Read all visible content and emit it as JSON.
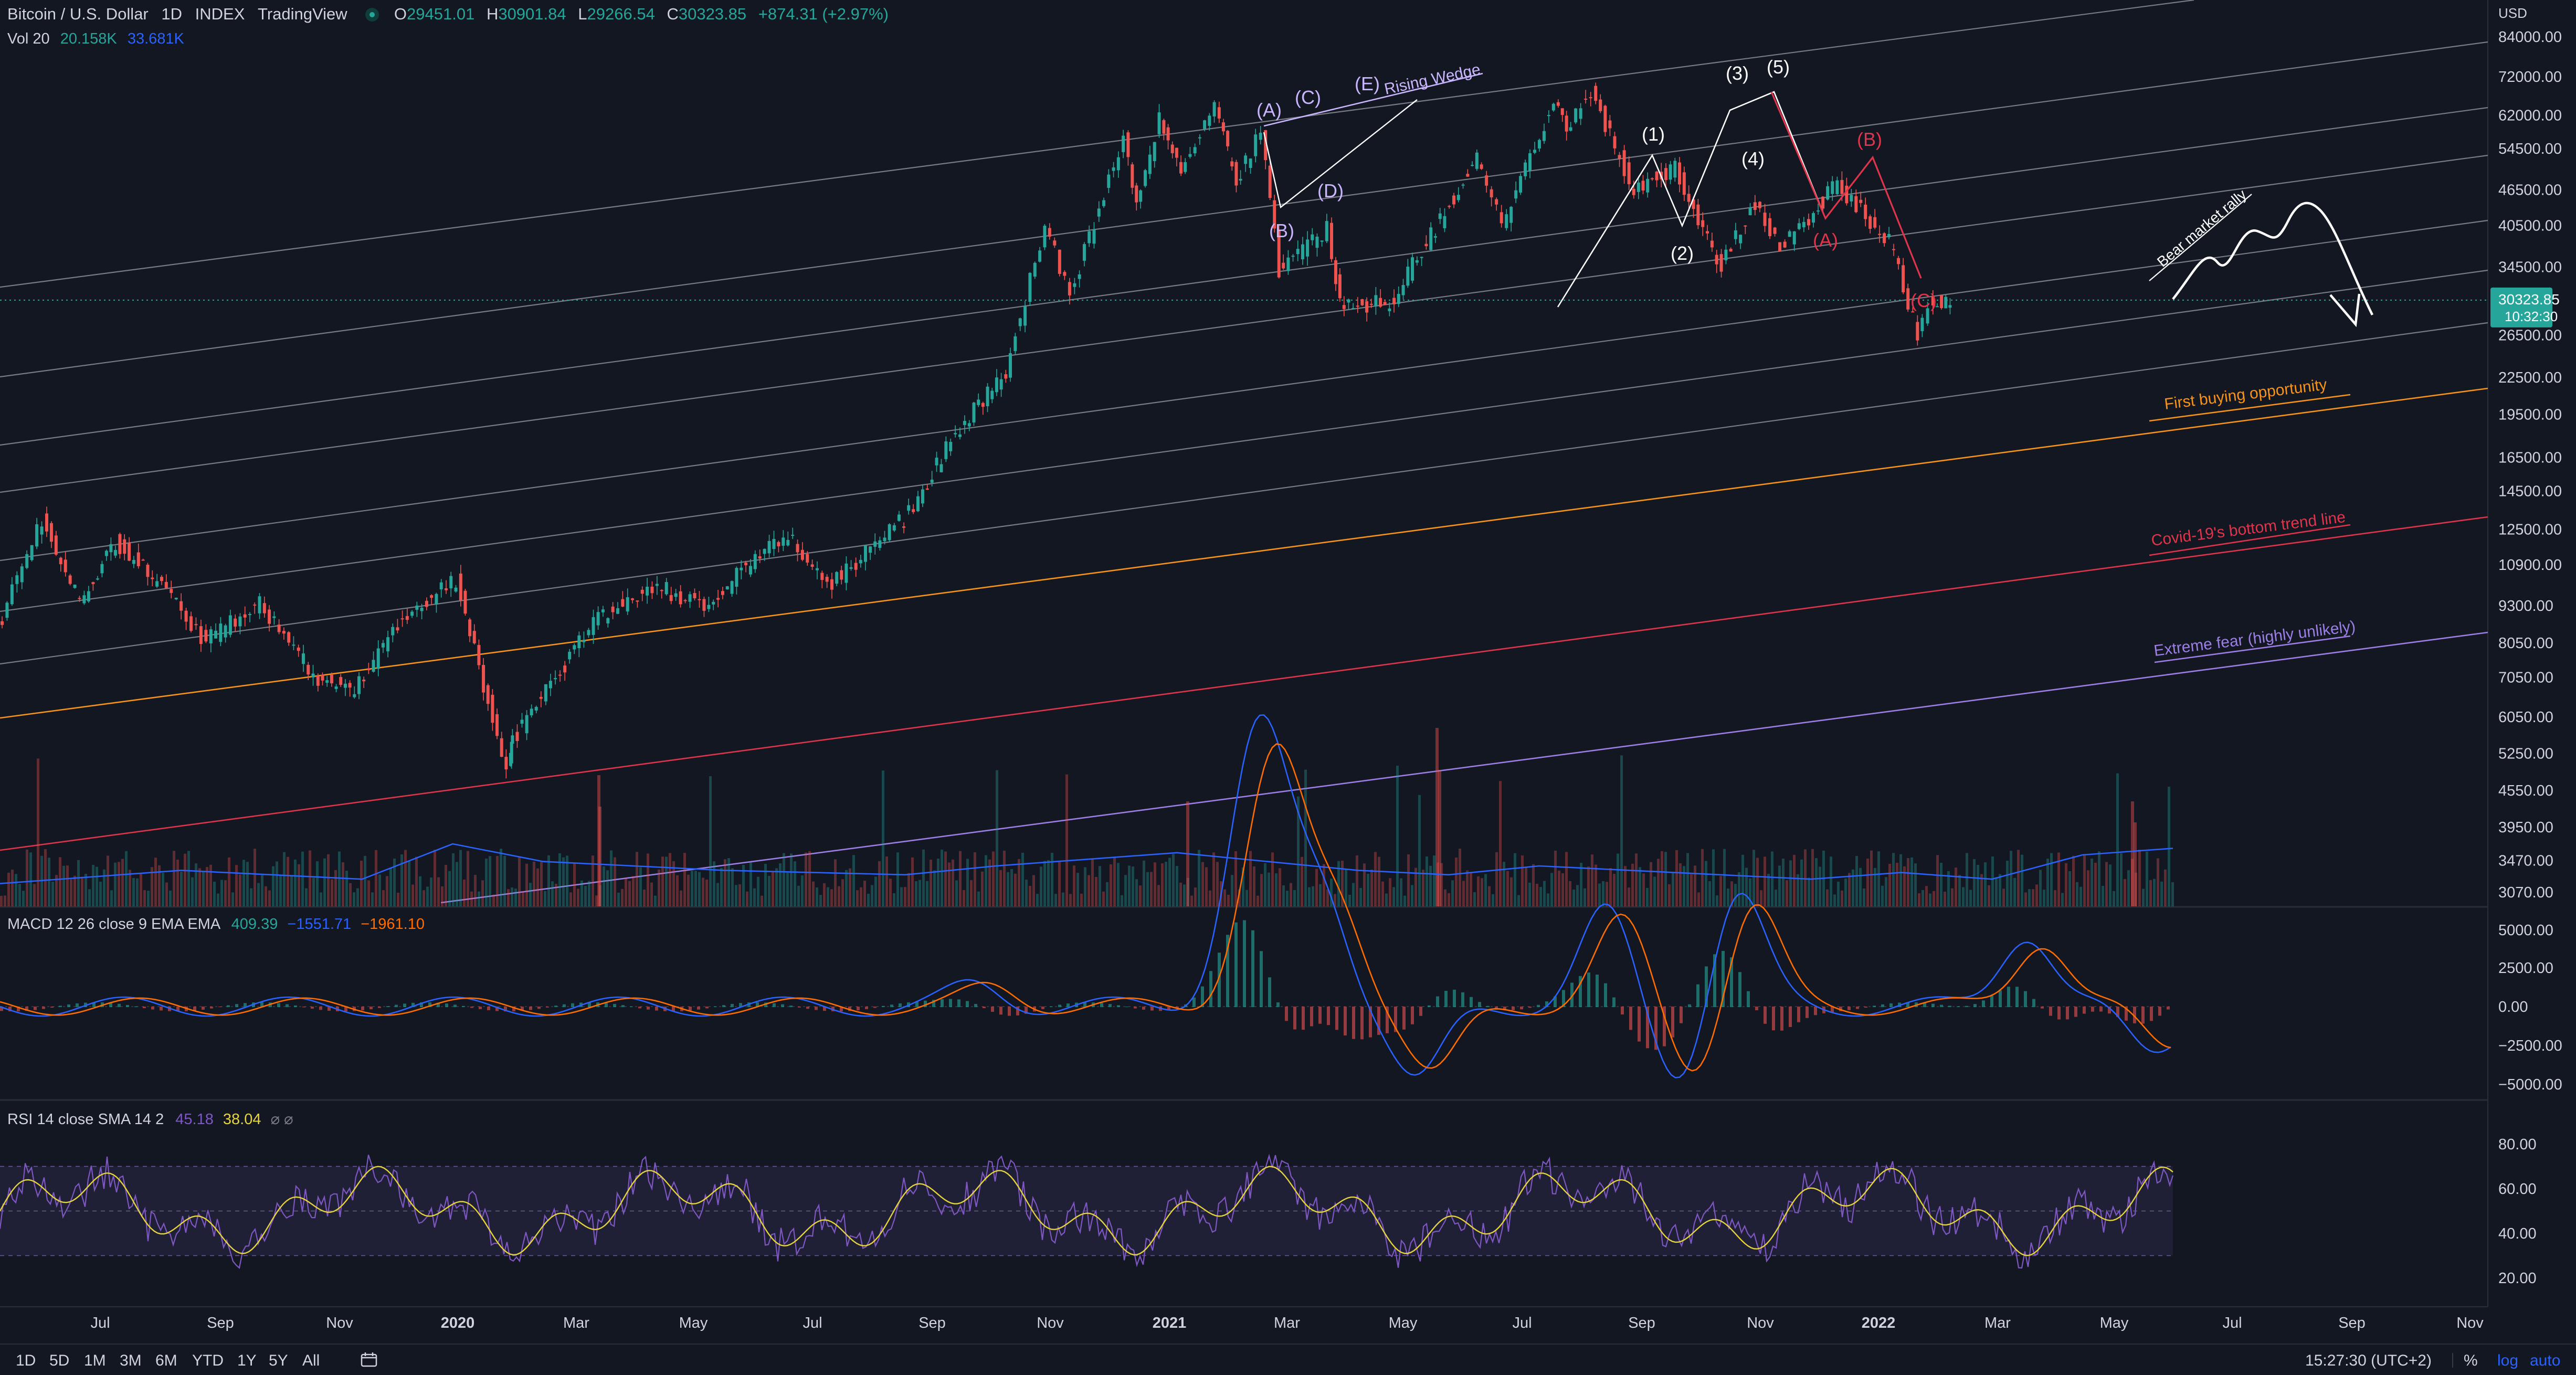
{
  "header": {
    "symbol": "Bitcoin / U.S. Dollar",
    "interval": "1D",
    "source": "INDEX",
    "platform": "TradingView",
    "ohlc": {
      "o_label": "O",
      "o_value": "29451.01",
      "h_label": "H",
      "h_value": "30901.84",
      "l_label": "L",
      "l_value": "29266.54",
      "c_label": "C",
      "c_value": "30323.85",
      "change": "+874.31 (+2.97%)"
    },
    "vol": {
      "label": "Vol 20",
      "v1": "20.158K",
      "v2": "33.681K"
    }
  },
  "macd_legend": {
    "label": "MACD 12 26 close 9 EMA EMA",
    "v1": "409.39",
    "v2": "−1551.71",
    "v3": "−1961.10"
  },
  "rsi_legend": {
    "label": "RSI 14 close SMA 14 2",
    "v1": "45.18",
    "v2": "38.04",
    "icons": "⌀ ⌀"
  },
  "chart_data": [
    {
      "type": "line",
      "title": "",
      "yscale": "log",
      "currency": "USD",
      "xlabel": "",
      "ylabel": "",
      "x_ticks": [
        "Jul",
        "Sep",
        "Nov",
        "2020",
        "Mar",
        "May",
        "Jul",
        "Sep",
        "Nov",
        "2021",
        "Mar",
        "May",
        "Jul",
        "Sep",
        "Nov",
        "2022",
        "Mar",
        "May",
        "Jul",
        "Sep",
        "Nov"
      ],
      "y_ticks": [
        84000,
        72000,
        62000,
        54500,
        46500,
        40500,
        34500,
        26500,
        22500,
        19500,
        16500,
        14500,
        12500,
        10900,
        9300,
        8050,
        7050,
        6050,
        5250,
        4550,
        3950,
        3470,
        3070
      ],
      "y_tick_labels": [
        "84000.00",
        "72000.00",
        "62000.00",
        "54500.00",
        "46500.00",
        "40500.00",
        "34500.00",
        "26500.00",
        "22500.00",
        "19500.00",
        "16500.00",
        "14500.00",
        "12500.00",
        "10900.00",
        "9300.00",
        "8050.00",
        "7050.00",
        "6050.00",
        "5250.00",
        "4550.00",
        "3950.00",
        "3470.00",
        "3070.00"
      ],
      "last_price": {
        "value": "30323.85",
        "countdown": "10:32:30"
      },
      "series": [
        {
          "values": [
            [
              "2019-06-01",
              8500
            ],
            [
              "2019-06-26",
              12900
            ],
            [
              "2019-07-17",
              9500
            ],
            [
              "2019-08-06",
              11900
            ],
            [
              "2019-09-01",
              10000
            ],
            [
              "2019-09-26",
              8100
            ],
            [
              "2019-10-26",
              9400
            ],
            [
              "2019-11-25",
              7100
            ],
            [
              "2019-12-18",
              6700
            ],
            [
              "2020-01-14",
              8800
            ],
            [
              "2020-02-13",
              10300
            ],
            [
              "2020-03-12",
              4900
            ],
            [
              "2020-03-13",
              5400
            ],
            [
              "2020-04-30",
              8700
            ],
            [
              "2020-06-02",
              10100
            ],
            [
              "2020-07-01",
              9200
            ],
            [
              "2020-07-27",
              11000
            ],
            [
              "2020-08-17",
              12200
            ],
            [
              "2020-09-08",
              10000
            ],
            [
              "2020-10-21",
              13000
            ],
            [
              "2020-11-24",
              19100
            ],
            [
              "2020-12-17",
              23000
            ],
            [
              "2021-01-08",
              40500
            ],
            [
              "2021-01-22",
              31000
            ],
            [
              "2021-02-21",
              57000
            ],
            [
              "2021-02-28",
              44000
            ],
            [
              "2021-03-13",
              61000
            ],
            [
              "2021-03-25",
              51000
            ],
            [
              "2021-04-13",
              63500
            ],
            [
              "2021-04-25",
              48000
            ],
            [
              "2021-05-09",
              58000
            ],
            [
              "2021-05-19",
              34000
            ],
            [
              "2021-06-15",
              40000
            ],
            [
              "2021-06-22",
              30000
            ],
            [
              "2021-07-20",
              29800
            ],
            [
              "2021-09-07",
              52500
            ],
            [
              "2021-09-21",
              40500
            ],
            [
              "2021-10-20",
              66000
            ],
            [
              "2021-10-27",
              58000
            ],
            [
              "2021-11-10",
              68500
            ],
            [
              "2021-12-04",
              46000
            ],
            [
              "2021-12-27",
              51000
            ],
            [
              "2022-01-22",
              34500
            ],
            [
              "2022-02-10",
              44500
            ],
            [
              "2022-02-24",
              37000
            ],
            [
              "2022-03-28",
              47500
            ],
            [
              "2022-04-26",
              38000
            ],
            [
              "2022-05-12",
              26500
            ],
            [
              "2022-05-18",
              30300
            ],
            [
              "2022-05-30",
              30323.85
            ]
          ]
        }
      ]
    },
    {
      "type": "bar",
      "title": "Vol 20",
      "values_k_avg": [
        22,
        25,
        28,
        26,
        24,
        40,
        32,
        30,
        28,
        27,
        26,
        30,
        33,
        36,
        32,
        28,
        26,
        30,
        28,
        26,
        24,
        27,
        24,
        35,
        38
      ]
    },
    {
      "type": "line",
      "title": "MACD 12 26 close 9 EMA EMA",
      "ylim": [
        -5000,
        5000
      ],
      "y_tick_labels": [
        "5000.00",
        "2500.00",
        "0.00",
        "−2500.00",
        "−5000.00"
      ]
    },
    {
      "type": "line",
      "title": "RSI 14 close SMA 14 2",
      "ylim": [
        20,
        80
      ],
      "y_tick_labels": [
        "80.00",
        "60.00",
        "40.00",
        "20.00"
      ]
    }
  ],
  "annotations": {
    "wave_labels": [
      "(A)",
      "(C)",
      "(E)",
      "(B)",
      "(D)",
      "(1)",
      "(2)",
      "(3)",
      "(4)",
      "(5)",
      "(A)",
      "(B)",
      "(C)"
    ],
    "rising_wedge": "Rising Wedge",
    "bear_rally": "Bear market rally",
    "first_buy": "First buying opportunity",
    "covid": "Covid-19's bottom trend line",
    "extreme": "Extreme fear (highly unlikely)"
  },
  "colors": {
    "bg": "#131722",
    "up": "#26a69a",
    "down": "#ef5350",
    "orange": "#f7931a",
    "red": "#e0344b",
    "purple": "#9c7fe6",
    "blue": "#2962ff",
    "macd": "#2962ff",
    "signal": "#ff6d00",
    "rsi": "#7e57c2",
    "rsi_ma": "#e6d43c"
  },
  "bottom_bar": {
    "ranges": [
      "1D",
      "5D",
      "1M",
      "3M",
      "6M",
      "YTD",
      "1Y",
      "5Y",
      "All"
    ],
    "time": "15:27:30 (UTC+2)",
    "percent": "%",
    "log": "log",
    "auto": "auto"
  }
}
